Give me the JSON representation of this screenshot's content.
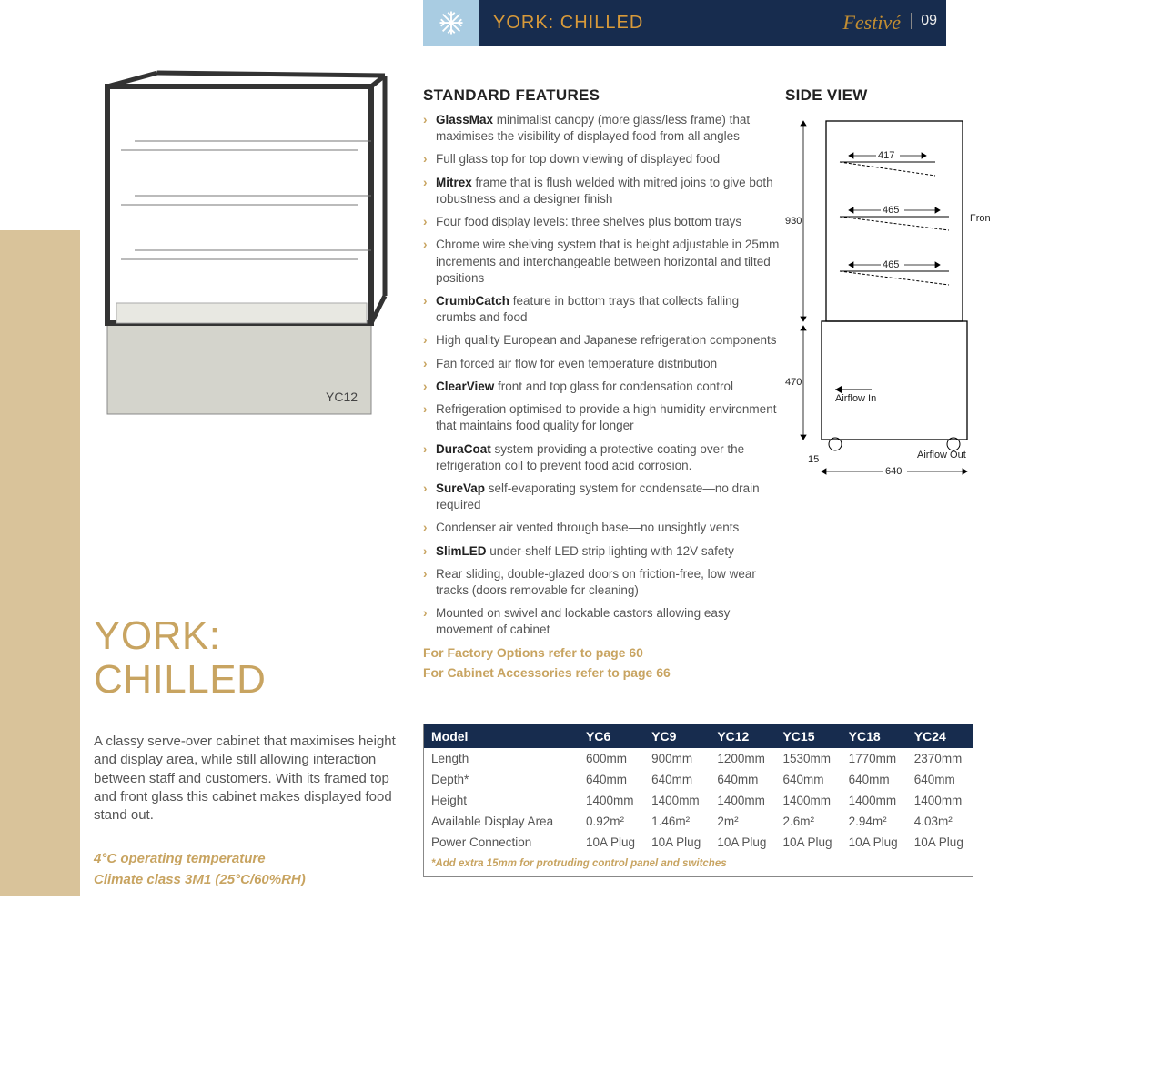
{
  "header": {
    "title": "YORK: CHILLED",
    "brand": "Festivé",
    "page_number": "09",
    "snowflake_icon": "snowflake-icon",
    "colors": {
      "bar_bg": "#172c4e",
      "icon_bg": "#a9cce2",
      "title_color": "#d89a3a"
    }
  },
  "product_image": {
    "label": "YC12"
  },
  "main_title": {
    "line1": "YORK:",
    "line2": "CHILLED"
  },
  "blurb": "A classy serve-over cabinet that maximises height and display area, while still allowing interaction between staff and customers. With its framed top and front glass this cabinet makes displayed food stand out.",
  "operating": {
    "line1": "4°C operating temperature",
    "line2": "Climate class 3M1 (25°C/60%RH)"
  },
  "features": {
    "heading": "STANDARD FEATURES",
    "items": [
      {
        "bold": "GlassMax",
        "rest": " minimalist canopy (more glass/less frame) that maximises the visibility of displayed food from all angles"
      },
      {
        "bold": "",
        "rest": "Full glass top for top down viewing of displayed food"
      },
      {
        "bold": "Mitrex",
        "rest": " frame that is flush welded with mitred joins to give both robustness and a designer finish"
      },
      {
        "bold": "",
        "rest": "Four food display levels: three shelves plus bottom trays"
      },
      {
        "bold": "",
        "rest": "Chrome wire shelving system that is height adjustable in 25mm increments and interchangeable between horizontal and tilted positions"
      },
      {
        "bold": "CrumbCatch",
        "rest": " feature in bottom trays that collects falling crumbs and food"
      },
      {
        "bold": "",
        "rest": "High quality European and Japanese refrigeration components"
      },
      {
        "bold": "",
        "rest": "Fan forced air flow for even temperature distribution"
      },
      {
        "bold": "ClearView",
        "rest": " front and top glass for condensation control"
      },
      {
        "bold": "",
        "rest": "Refrigeration optimised to provide a high humidity environment that maintains food quality for longer"
      },
      {
        "bold": "DuraCoat",
        "rest": " system providing a protective coating over the refrigeration coil to prevent food acid corrosion."
      },
      {
        "bold": "SureVap",
        "rest": " self-evaporating system for condensate—no drain required"
      },
      {
        "bold": "",
        "rest": "Condenser air vented through base—no unsightly vents"
      },
      {
        "bold": "SlimLED",
        "rest": " under-shelf LED strip lighting with 12V safety"
      },
      {
        "bold": "",
        "rest": "Rear sliding, double-glazed doors on friction-free, low wear tracks (doors removable for cleaning)"
      },
      {
        "bold": "",
        "rest": "Mounted on swivel and lockable castors allowing easy movement of cabinet"
      }
    ],
    "refs": [
      "For Factory Options refer to page 60",
      "For Cabinet Accessories refer to page 66"
    ]
  },
  "sideview": {
    "heading": "SIDE VIEW",
    "upper_height": "930",
    "lower_height": "470",
    "shelf_dims": [
      "417",
      "465",
      "465"
    ],
    "base_width": "640",
    "base_offset": "15",
    "airflow_in": "Airflow In",
    "airflow_out": "Airflow Out",
    "front_label": "Front"
  },
  "spec_table": {
    "columns": [
      "Model",
      "YC6",
      "YC9",
      "YC12",
      "YC15",
      "YC18",
      "YC24"
    ],
    "rows": [
      [
        "Length",
        "600mm",
        "900mm",
        "1200mm",
        "1530mm",
        "1770mm",
        "2370mm"
      ],
      [
        "Depth*",
        "640mm",
        "640mm",
        "640mm",
        "640mm",
        "640mm",
        "640mm"
      ],
      [
        "Height",
        "1400mm",
        "1400mm",
        "1400mm",
        "1400mm",
        "1400mm",
        "1400mm"
      ],
      [
        "Available Display Area",
        "0.92m²",
        "1.46m²",
        "2m²",
        "2.6m²",
        "2.94m²",
        "4.03m²"
      ],
      [
        "Power Connection",
        "10A Plug",
        "10A Plug",
        "10A Plug",
        "10A Plug",
        "10A Plug",
        "10A Plug"
      ]
    ],
    "footnote": "*Add extra 15mm for protruding control panel and switches"
  },
  "colors": {
    "navy": "#172c4e",
    "tan": "#c8a461",
    "gold": "#c38e32",
    "text": "#4a4a4a"
  }
}
